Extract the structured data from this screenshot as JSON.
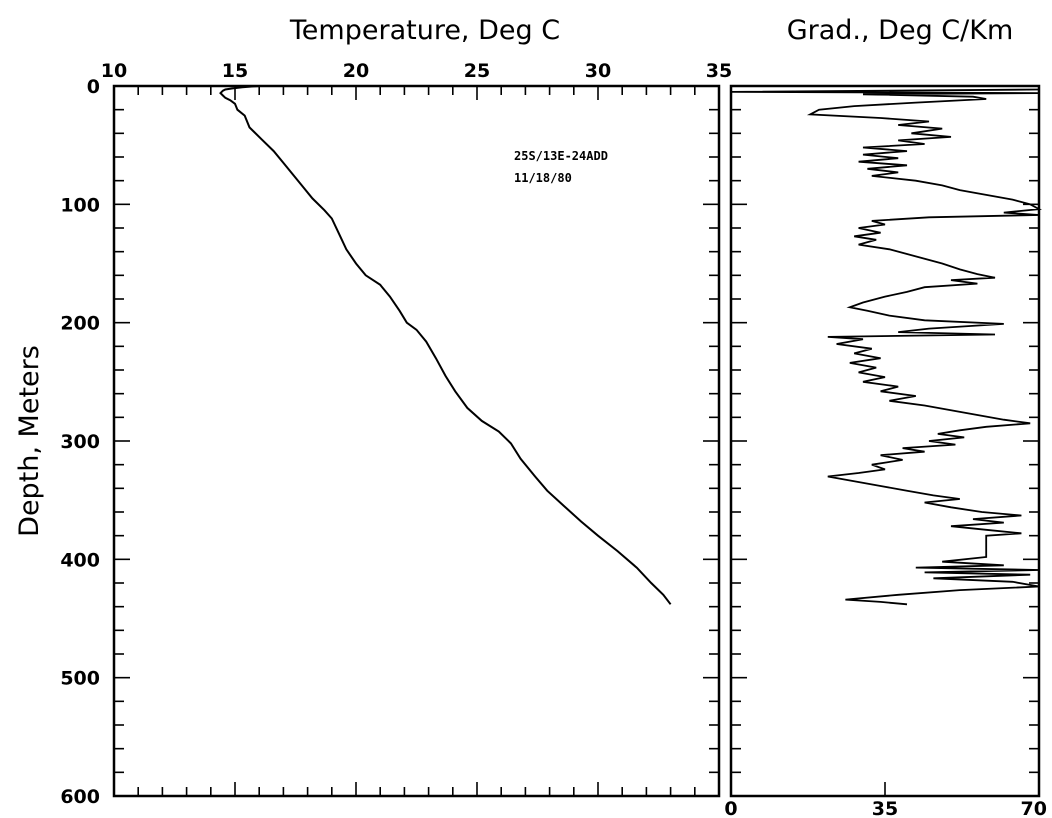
{
  "chart_data": [
    {
      "type": "line",
      "title": "Temperature, Deg C",
      "xlabel": "Temperature, Deg C",
      "ylabel": "Depth, Meters",
      "xlim": [
        10,
        35
      ],
      "ylim": [
        0,
        600
      ],
      "y_inverted": true,
      "x_axis_position": "top",
      "x_ticks": [
        10,
        15,
        20,
        25,
        30,
        35
      ],
      "y_ticks": [
        0,
        100,
        200,
        300,
        400,
        500,
        600
      ],
      "grid": false,
      "annotations": [
        "25S/13E-24ADD",
        "11/18/80"
      ],
      "series": [
        {
          "color": "#000000",
          "points": [
            [
              16.0,
              0
            ],
            [
              15.3,
              1
            ],
            [
              14.9,
              2
            ],
            [
              14.6,
              3
            ],
            [
              14.5,
              4
            ],
            [
              14.4,
              6
            ],
            [
              14.5,
              8
            ],
            [
              14.6,
              10
            ],
            [
              14.8,
              12
            ],
            [
              15.0,
              15
            ],
            [
              15.1,
              20
            ],
            [
              15.4,
              25
            ],
            [
              15.6,
              35
            ],
            [
              16.1,
              45
            ],
            [
              16.6,
              55
            ],
            [
              17.0,
              65
            ],
            [
              17.4,
              75
            ],
            [
              17.8,
              85
            ],
            [
              18.2,
              95
            ],
            [
              18.7,
              105
            ],
            [
              19.0,
              112
            ],
            [
              19.3,
              125
            ],
            [
              19.6,
              138
            ],
            [
              20.0,
              150
            ],
            [
              20.4,
              160
            ],
            [
              21.0,
              168
            ],
            [
              21.4,
              178
            ],
            [
              21.8,
              190
            ],
            [
              22.1,
              200
            ],
            [
              22.5,
              206
            ],
            [
              22.9,
              216
            ],
            [
              23.3,
              230
            ],
            [
              23.7,
              245
            ],
            [
              24.1,
              258
            ],
            [
              24.6,
              272
            ],
            [
              25.2,
              283
            ],
            [
              25.9,
              292
            ],
            [
              26.4,
              302
            ],
            [
              26.8,
              315
            ],
            [
              27.4,
              330
            ],
            [
              27.9,
              342
            ],
            [
              28.6,
              355
            ],
            [
              29.3,
              368
            ],
            [
              30.0,
              380
            ],
            [
              30.8,
              393
            ],
            [
              31.6,
              407
            ],
            [
              32.2,
              420
            ],
            [
              32.7,
              430
            ],
            [
              33.0,
              438
            ]
          ]
        }
      ]
    },
    {
      "type": "line",
      "title": "Grad., Deg C/Km",
      "xlabel": "Grad., Deg C/Km",
      "ylabel": "",
      "xlim": [
        0,
        70
      ],
      "ylim": [
        0,
        600
      ],
      "y_inverted": true,
      "x_axis_position": "bottom",
      "x_ticks": [
        0,
        35,
        70
      ],
      "grid": false,
      "series": [
        {
          "color": "#000000",
          "points": [
            [
              70,
              3
            ],
            [
              0,
              5
            ],
            [
              70,
              6
            ],
            [
              30,
              7
            ],
            [
              55,
              9
            ],
            [
              58,
              11
            ],
            [
              42,
              14
            ],
            [
              28,
              17
            ],
            [
              20,
              20
            ],
            [
              18,
              24
            ],
            [
              34,
              27
            ],
            [
              45,
              30
            ],
            [
              38,
              33
            ],
            [
              48,
              36
            ],
            [
              41,
              40
            ],
            [
              50,
              43
            ],
            [
              38,
              46
            ],
            [
              44,
              49
            ],
            [
              30,
              52
            ],
            [
              40,
              55
            ],
            [
              30,
              58
            ],
            [
              38,
              61
            ],
            [
              29,
              64
            ],
            [
              40,
              67
            ],
            [
              31,
              70
            ],
            [
              38,
              73
            ],
            [
              32,
              76
            ],
            [
              42,
              80
            ],
            [
              48,
              84
            ],
            [
              52,
              88
            ],
            [
              58,
              92
            ],
            [
              64,
              96
            ],
            [
              68,
              100
            ],
            [
              70,
              104
            ],
            [
              62,
              107
            ],
            [
              70,
              109
            ],
            [
              45,
              111
            ],
            [
              32,
              114
            ],
            [
              35,
              117
            ],
            [
              29,
              120
            ],
            [
              34,
              124
            ],
            [
              28,
              127
            ],
            [
              33,
              130
            ],
            [
              29,
              134
            ],
            [
              36,
              138
            ],
            [
              40,
              142
            ],
            [
              44,
              146
            ],
            [
              48,
              150
            ],
            [
              52,
              155
            ],
            [
              56,
              159
            ],
            [
              60,
              162
            ],
            [
              50,
              164
            ],
            [
              56,
              167
            ],
            [
              44,
              170
            ],
            [
              40,
              174
            ],
            [
              35,
              178
            ],
            [
              30,
              183
            ],
            [
              27,
              187
            ],
            [
              31,
              190
            ],
            [
              36,
              194
            ],
            [
              44,
              198
            ],
            [
              62,
              201
            ],
            [
              45,
              205
            ],
            [
              38,
              208
            ],
            [
              60,
              210
            ],
            [
              22,
              212
            ],
            [
              30,
              214
            ],
            [
              24,
              218
            ],
            [
              32,
              222
            ],
            [
              28,
              226
            ],
            [
              34,
              230
            ],
            [
              27,
              234
            ],
            [
              33,
              238
            ],
            [
              29,
              242
            ],
            [
              35,
              246
            ],
            [
              30,
              250
            ],
            [
              38,
              254
            ],
            [
              34,
              258
            ],
            [
              42,
              262
            ],
            [
              36,
              266
            ],
            [
              44,
              270
            ],
            [
              50,
              274
            ],
            [
              56,
              278
            ],
            [
              62,
              282
            ],
            [
              68,
              285
            ],
            [
              58,
              288
            ],
            [
              52,
              291
            ],
            [
              47,
              294
            ],
            [
              53,
              297
            ],
            [
              45,
              300
            ],
            [
              51,
              303
            ],
            [
              39,
              306
            ],
            [
              44,
              309
            ],
            [
              34,
              312
            ],
            [
              39,
              316
            ],
            [
              32,
              320
            ],
            [
              35,
              324
            ],
            [
              29,
              327
            ],
            [
              22,
              330
            ],
            [
              28,
              334
            ],
            [
              34,
              338
            ],
            [
              40,
              342
            ],
            [
              46,
              346
            ],
            [
              52,
              349
            ],
            [
              44,
              352
            ],
            [
              50,
              356
            ],
            [
              57,
              360
            ],
            [
              66,
              363
            ],
            [
              55,
              366
            ],
            [
              62,
              369
            ],
            [
              50,
              372
            ],
            [
              58,
              375
            ],
            [
              66,
              378
            ],
            [
              58,
              380
            ],
            [
              58,
              398
            ],
            [
              48,
              402
            ],
            [
              62,
              405
            ],
            [
              42,
              407
            ],
            [
              70,
              409
            ],
            [
              44,
              411
            ],
            [
              68,
              413
            ],
            [
              46,
              416
            ],
            [
              64,
              419
            ],
            [
              70,
              423
            ],
            [
              52,
              426
            ],
            [
              38,
              430
            ],
            [
              26,
              434
            ],
            [
              34,
              436
            ],
            [
              40,
              438
            ]
          ]
        }
      ]
    }
  ]
}
